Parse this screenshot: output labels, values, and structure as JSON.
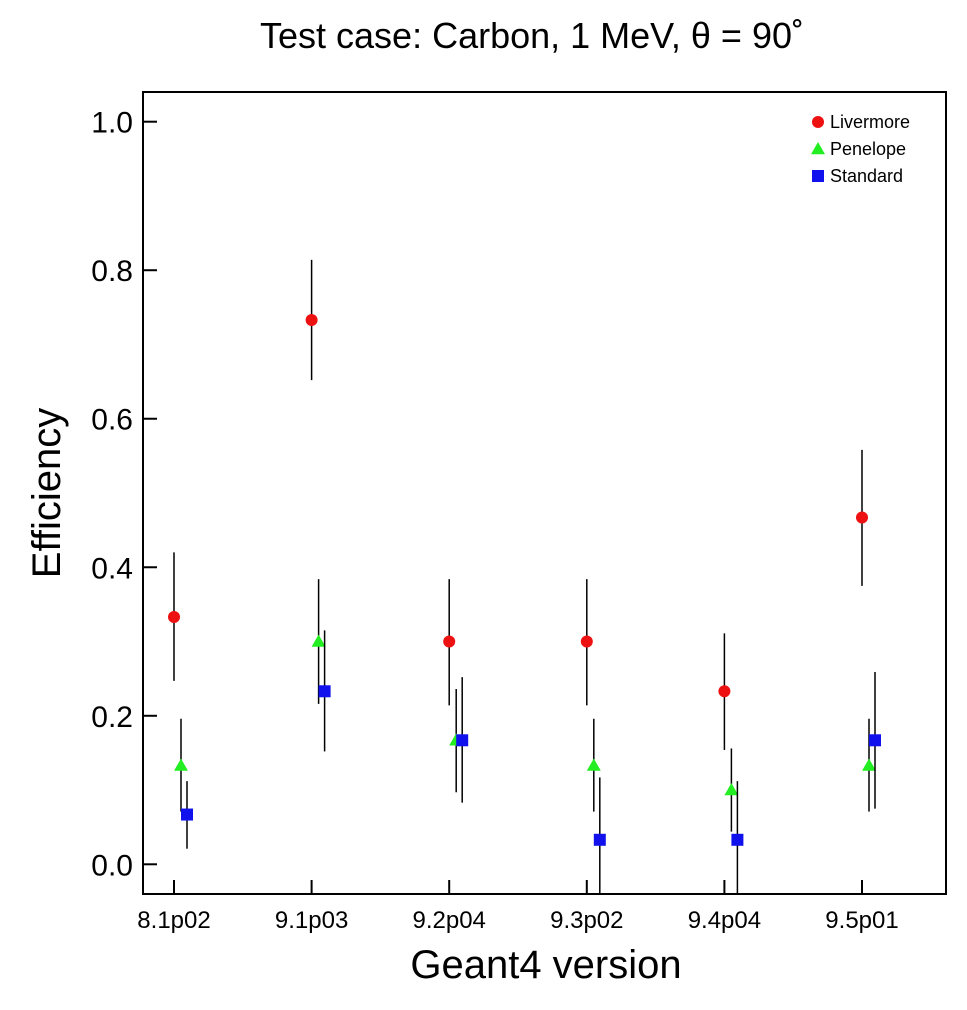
{
  "chart_data": {
    "type": "scatter",
    "title": "Test case: Carbon, 1 MeV, θ = 90˚",
    "xlabel": "Geant4 version",
    "ylabel": "Efficiency",
    "categories": [
      "8.1p02",
      "9.1p03",
      "9.2p04",
      "9.3p02",
      "9.4p04",
      "9.5p01"
    ],
    "ylim": [
      -0.04,
      1.04
    ],
    "yticks": [
      "0.0",
      "0.2",
      "0.4",
      "0.6",
      "0.8",
      "1.0"
    ],
    "ytick_values": [
      0.0,
      0.2,
      0.4,
      0.6,
      0.8,
      1.0
    ],
    "grid": false,
    "legend_position": "top-right",
    "series": [
      {
        "name": "Livermore",
        "marker": "circle",
        "color": "#ee1111",
        "values": [
          0.333,
          0.733,
          0.3,
          0.3,
          0.233,
          0.467
        ],
        "err_low": [
          0.247,
          0.652,
          0.214,
          0.214,
          0.154,
          0.375
        ],
        "err_high": [
          0.42,
          0.814,
          0.384,
          0.384,
          0.311,
          0.558
        ]
      },
      {
        "name": "Penelope",
        "marker": "triangle",
        "color": "#22ee22",
        "values": [
          0.133,
          0.3,
          0.167,
          0.133,
          0.1,
          0.133
        ],
        "err_low": [
          0.071,
          0.216,
          0.097,
          0.071,
          0.044,
          0.071
        ],
        "err_high": [
          0.196,
          0.384,
          0.236,
          0.196,
          0.156,
          0.196
        ]
      },
      {
        "name": "Standard",
        "marker": "square",
        "color": "#1111ee",
        "values": [
          0.067,
          0.233,
          0.167,
          0.033,
          0.033,
          0.167
        ],
        "err_low": [
          0.021,
          0.152,
          0.083,
          -0.04,
          -0.04,
          0.075
        ],
        "err_high": [
          0.112,
          0.315,
          0.252,
          0.117,
          0.112,
          0.259
        ]
      }
    ]
  }
}
